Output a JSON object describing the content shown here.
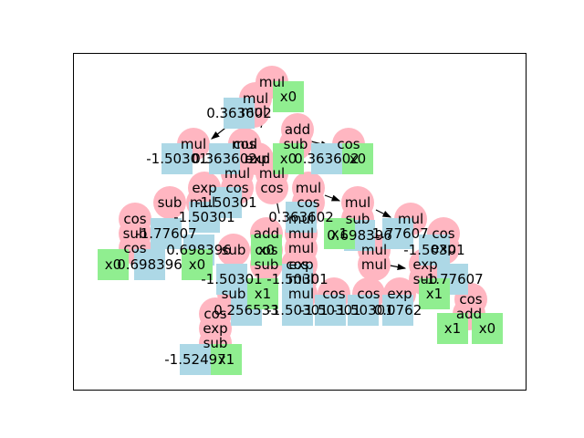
{
  "diagram": {
    "type": "expression-tree",
    "colors": {
      "operator": "#FFB6C1",
      "constant": "#ADD8E6",
      "variable": "#90EE90",
      "edge": "#000000",
      "frame": "#000000"
    },
    "operators": [
      "mul",
      "mul",
      "mul",
      "add",
      "cos",
      "sub",
      "mul",
      "mul",
      "cos",
      "mul",
      "exp",
      "mul",
      "mul",
      "cos",
      "sub",
      "exp",
      "cos",
      "mul",
      "mul",
      "cos",
      "mul",
      "sub",
      "add",
      "mul",
      "mul",
      "cos",
      "sub",
      "cos",
      "sub",
      "cos",
      "sub",
      "mul",
      "mul",
      "exp",
      "mul",
      "mul",
      "mul",
      "sub",
      "exp",
      "sub",
      "cos",
      "exp",
      "mul",
      "cos",
      "cos",
      "cos",
      "exp",
      "add",
      "sub",
      "cos",
      "exp",
      "cos"
    ],
    "constants": [
      "0.363602",
      "-1.50301",
      "0.363602",
      "0.363602",
      "-1.50301",
      "-1.77607",
      "-1.50301",
      "0.363602",
      "0.698396",
      "-1.77607",
      "0.698396",
      "-1.50301",
      "-1.50301",
      "0.698396",
      "-1.77607",
      "-1.50301",
      "0.256533",
      "-1.50301",
      "-1.50301",
      "-1.50301",
      "0.0762",
      "-1.52497"
    ],
    "variables": [
      "x0",
      "x0",
      "x0",
      "x0",
      "x0",
      "x0",
      "x1",
      "x1",
      "x1",
      "x0",
      "x1",
      "x1"
    ]
  }
}
